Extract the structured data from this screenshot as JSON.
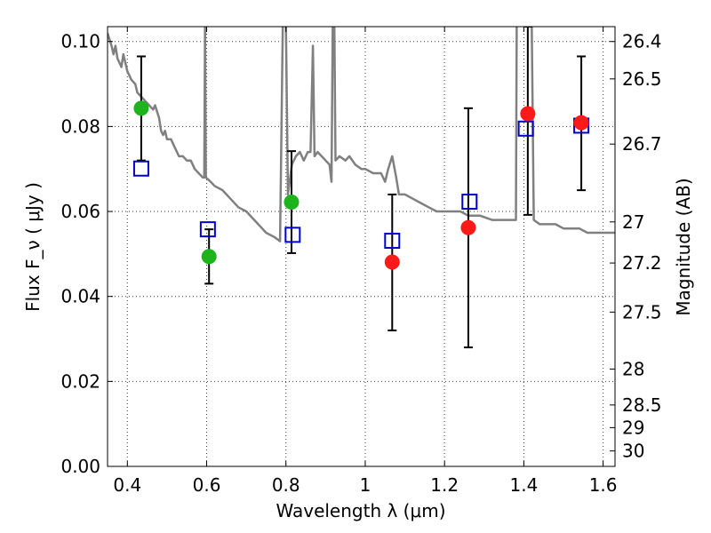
{
  "chart_data": {
    "type": "scatter",
    "title": "",
    "xlabel": "Wavelength  λ (μm)",
    "ylabel": "Flux  F_ν  ( μJy )",
    "ylabel_right": "Magnitude (AB)",
    "xlim": [
      0.35,
      1.63
    ],
    "ylim": [
      0.0,
      0.1035
    ],
    "grid": true,
    "x_ticks": [
      0.4,
      0.6,
      0.8,
      1.0,
      1.2,
      1.4,
      1.6
    ],
    "x_tick_labels": [
      "0.4",
      "0.6",
      "0.8",
      "1",
      "1.2",
      "1.4",
      "1.6"
    ],
    "y_ticks": [
      0.0,
      0.02,
      0.04,
      0.06,
      0.08,
      0.1
    ],
    "y_tick_labels": [
      "0.00",
      "0.02",
      "0.04",
      "0.06",
      "0.08",
      "0.10"
    ],
    "right_ticks": [
      {
        "mag": 26.4,
        "label": "26.4"
      },
      {
        "mag": 26.5,
        "label": "26.5"
      },
      {
        "mag": 26.7,
        "label": "26.7"
      },
      {
        "mag": 27.0,
        "label": "27"
      },
      {
        "mag": 27.2,
        "label": "27.2"
      },
      {
        "mag": 27.5,
        "label": "27.5"
      },
      {
        "mag": 28.0,
        "label": "28"
      },
      {
        "mag": 28.5,
        "label": "28.5"
      },
      {
        "mag": 29.0,
        "label": "29"
      },
      {
        "mag": 30.0,
        "label": "30"
      }
    ],
    "series": [
      {
        "marker": "circle",
        "color": "#1db31d",
        "points": [
          {
            "x": 0.435,
            "y": 0.0843,
            "err_lo": 0.072,
            "err_hi": 0.0965
          },
          {
            "x": 0.606,
            "y": 0.0494,
            "err_lo": 0.043,
            "err_hi": 0.0558
          },
          {
            "x": 0.814,
            "y": 0.0622,
            "err_lo": 0.0502,
            "err_hi": 0.0742
          }
        ]
      },
      {
        "marker": "circle",
        "color": "#ff1a1a",
        "points": [
          {
            "x": 1.068,
            "y": 0.0481,
            "err_lo": 0.032,
            "err_hi": 0.064
          },
          {
            "x": 1.26,
            "y": 0.0562,
            "err_lo": 0.028,
            "err_hi": 0.0843
          },
          {
            "x": 1.41,
            "y": 0.083,
            "err_lo": 0.0592,
            "err_hi": 0.1035
          },
          {
            "x": 1.545,
            "y": 0.0809,
            "err_lo": 0.065,
            "err_hi": 0.0965
          }
        ]
      },
      {
        "marker": "square-open",
        "color": "#0000cc",
        "points": [
          {
            "x": 0.435,
            "y": 0.0701
          },
          {
            "x": 0.603,
            "y": 0.0558
          },
          {
            "x": 0.817,
            "y": 0.0545
          },
          {
            "x": 1.068,
            "y": 0.0531
          },
          {
            "x": 1.263,
            "y": 0.0623
          },
          {
            "x": 1.405,
            "y": 0.0795
          },
          {
            "x": 1.545,
            "y": 0.0802
          }
        ]
      },
      {
        "marker": "line",
        "color": "#808080",
        "points": [
          {
            "x": 0.35,
            "y": 0.102
          },
          {
            "x": 0.36,
            "y": 0.099
          },
          {
            "x": 0.365,
            "y": 0.097
          },
          {
            "x": 0.37,
            "y": 0.099
          },
          {
            "x": 0.375,
            "y": 0.096
          },
          {
            "x": 0.385,
            "y": 0.094
          },
          {
            "x": 0.39,
            "y": 0.097
          },
          {
            "x": 0.4,
            "y": 0.093
          },
          {
            "x": 0.41,
            "y": 0.091
          },
          {
            "x": 0.42,
            "y": 0.09
          },
          {
            "x": 0.425,
            "y": 0.088
          },
          {
            "x": 0.435,
            "y": 0.087
          },
          {
            "x": 0.445,
            "y": 0.086
          },
          {
            "x": 0.455,
            "y": 0.085
          },
          {
            "x": 0.465,
            "y": 0.084
          },
          {
            "x": 0.47,
            "y": 0.085
          },
          {
            "x": 0.48,
            "y": 0.082
          },
          {
            "x": 0.485,
            "y": 0.079
          },
          {
            "x": 0.49,
            "y": 0.078
          },
          {
            "x": 0.495,
            "y": 0.079
          },
          {
            "x": 0.5,
            "y": 0.077
          },
          {
            "x": 0.51,
            "y": 0.077
          },
          {
            "x": 0.52,
            "y": 0.075
          },
          {
            "x": 0.525,
            "y": 0.074
          },
          {
            "x": 0.53,
            "y": 0.073
          },
          {
            "x": 0.54,
            "y": 0.073
          },
          {
            "x": 0.55,
            "y": 0.072
          },
          {
            "x": 0.56,
            "y": 0.072
          },
          {
            "x": 0.57,
            "y": 0.07
          },
          {
            "x": 0.58,
            "y": 0.069
          },
          {
            "x": 0.59,
            "y": 0.068
          },
          {
            "x": 0.594,
            "y": 0.068
          },
          {
            "x": 0.596,
            "y": 0.104
          },
          {
            "x": 0.598,
            "y": 0.068
          },
          {
            "x": 0.61,
            "y": 0.067
          },
          {
            "x": 0.62,
            "y": 0.066
          },
          {
            "x": 0.64,
            "y": 0.065
          },
          {
            "x": 0.66,
            "y": 0.063
          },
          {
            "x": 0.68,
            "y": 0.061
          },
          {
            "x": 0.7,
            "y": 0.06
          },
          {
            "x": 0.72,
            "y": 0.058
          },
          {
            "x": 0.74,
            "y": 0.056
          },
          {
            "x": 0.75,
            "y": 0.055
          },
          {
            "x": 0.77,
            "y": 0.054
          },
          {
            "x": 0.785,
            "y": 0.053
          },
          {
            "x": 0.792,
            "y": 0.104
          },
          {
            "x": 0.8,
            "y": 0.104
          },
          {
            "x": 0.805,
            "y": 0.064
          },
          {
            "x": 0.815,
            "y": 0.071
          },
          {
            "x": 0.825,
            "y": 0.073
          },
          {
            "x": 0.835,
            "y": 0.074
          },
          {
            "x": 0.845,
            "y": 0.072
          },
          {
            "x": 0.855,
            "y": 0.074
          },
          {
            "x": 0.862,
            "y": 0.074
          },
          {
            "x": 0.868,
            "y": 0.099
          },
          {
            "x": 0.872,
            "y": 0.073
          },
          {
            "x": 0.88,
            "y": 0.074
          },
          {
            "x": 0.89,
            "y": 0.073
          },
          {
            "x": 0.9,
            "y": 0.072
          },
          {
            "x": 0.91,
            "y": 0.071
          },
          {
            "x": 0.915,
            "y": 0.067
          },
          {
            "x": 0.918,
            "y": 0.104
          },
          {
            "x": 0.922,
            "y": 0.104
          },
          {
            "x": 0.925,
            "y": 0.072
          },
          {
            "x": 0.935,
            "y": 0.073
          },
          {
            "x": 0.95,
            "y": 0.072
          },
          {
            "x": 0.96,
            "y": 0.073
          },
          {
            "x": 0.975,
            "y": 0.071
          },
          {
            "x": 0.99,
            "y": 0.07
          },
          {
            "x": 1.0,
            "y": 0.07
          },
          {
            "x": 1.02,
            "y": 0.069
          },
          {
            "x": 1.04,
            "y": 0.069
          },
          {
            "x": 1.05,
            "y": 0.067
          },
          {
            "x": 1.058,
            "y": 0.07
          },
          {
            "x": 1.068,
            "y": 0.073
          },
          {
            "x": 1.078,
            "y": 0.068
          },
          {
            "x": 1.085,
            "y": 0.064
          },
          {
            "x": 1.1,
            "y": 0.064
          },
          {
            "x": 1.12,
            "y": 0.063
          },
          {
            "x": 1.14,
            "y": 0.062
          },
          {
            "x": 1.16,
            "y": 0.061
          },
          {
            "x": 1.18,
            "y": 0.06
          },
          {
            "x": 1.2,
            "y": 0.06
          },
          {
            "x": 1.22,
            "y": 0.06
          },
          {
            "x": 1.24,
            "y": 0.06
          },
          {
            "x": 1.26,
            "y": 0.059
          },
          {
            "x": 1.29,
            "y": 0.059
          },
          {
            "x": 1.32,
            "y": 0.058
          },
          {
            "x": 1.35,
            "y": 0.058
          },
          {
            "x": 1.38,
            "y": 0.058
          },
          {
            "x": 1.382,
            "y": 0.104
          },
          {
            "x": 1.39,
            "y": 0.104
          },
          {
            "x": 1.4,
            "y": 0.104
          },
          {
            "x": 1.41,
            "y": 0.104
          },
          {
            "x": 1.42,
            "y": 0.104
          },
          {
            "x": 1.425,
            "y": 0.058
          },
          {
            "x": 1.44,
            "y": 0.057
          },
          {
            "x": 1.46,
            "y": 0.057
          },
          {
            "x": 1.48,
            "y": 0.057
          },
          {
            "x": 1.5,
            "y": 0.056
          },
          {
            "x": 1.52,
            "y": 0.056
          },
          {
            "x": 1.54,
            "y": 0.056
          },
          {
            "x": 1.56,
            "y": 0.055
          },
          {
            "x": 1.58,
            "y": 0.055
          },
          {
            "x": 1.6,
            "y": 0.055
          },
          {
            "x": 1.63,
            "y": 0.055
          }
        ]
      }
    ]
  }
}
